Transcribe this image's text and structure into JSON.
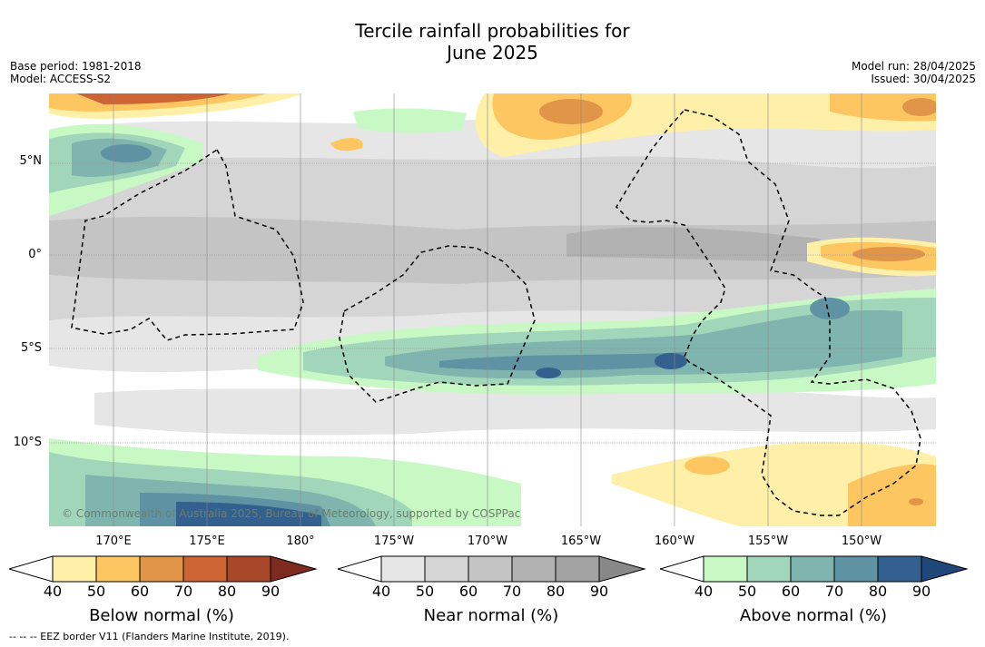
{
  "title_line1": "Tercile rainfall probabilities for",
  "title_line2": "June 2025",
  "meta_left": {
    "base_period": "Base period: 1981-2018",
    "model": "Model: ACCESS-S2"
  },
  "meta_right": {
    "model_run": "Model run: 28/04/2025",
    "issued": "Issued: 30/04/2025"
  },
  "lat_labels": [
    "5°N",
    "0°",
    "5°S",
    "10°S"
  ],
  "lon_labels": [
    "170°E",
    "175°E",
    "180°",
    "175°W",
    "170°W",
    "165°W",
    "160°W",
    "155°W",
    "150°W"
  ],
  "credit": "© Commonwealth of Australia 2025, Bureau of Meteorology, supported by COSPPac",
  "legends": [
    {
      "title": "Below normal (%)",
      "ticks": [
        "40",
        "50",
        "60",
        "70",
        "80",
        "90"
      ],
      "colors": [
        "#fef0a9",
        "#fdc661",
        "#e09548",
        "#cc6434",
        "#a8472a",
        "#7d2a1f"
      ]
    },
    {
      "title": "Near normal (%)",
      "ticks": [
        "40",
        "50",
        "60",
        "70",
        "80",
        "90"
      ],
      "colors": [
        "#e6e6e6",
        "#d5d5d5",
        "#c4c4c4",
        "#b2b2b2",
        "#a2a2a2",
        "#888888"
      ]
    },
    {
      "title": "Above normal (%)",
      "ticks": [
        "40",
        "50",
        "60",
        "70",
        "80",
        "90"
      ],
      "colors": [
        "#c8f8c4",
        "#a2d6bb",
        "#7fb5ae",
        "#5f93a4",
        "#33608f",
        "#1f477a"
      ]
    }
  ],
  "footnote": "--  --  -- EEZ border V11 (Flanders Marine Institute, 2019)."
}
